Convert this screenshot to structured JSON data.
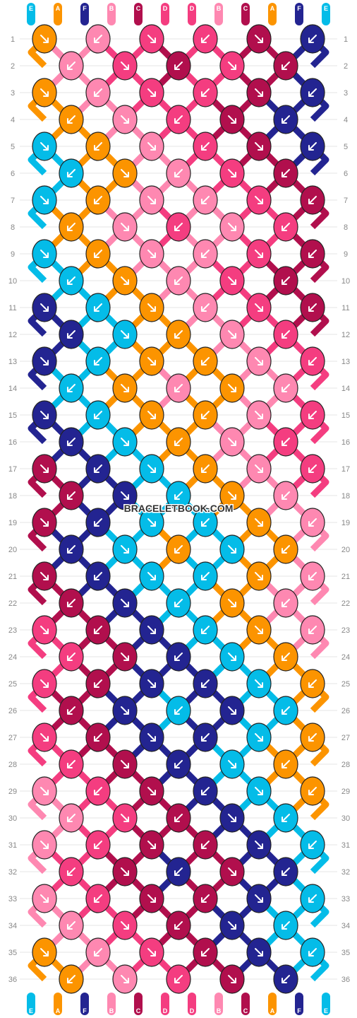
{
  "site": {
    "watermark": "BRACELETBOOK.COM"
  },
  "colors": {
    "A": "#fc9400",
    "B": "#fe88b1",
    "C": "#b10f4d",
    "D": "#f43d80",
    "E": "#04bce8",
    "F": "#232491"
  },
  "strands": {
    "top": [
      "E",
      "A",
      "F",
      "B",
      "C",
      "D",
      "D",
      "B",
      "C",
      "A",
      "F",
      "E"
    ],
    "bottom": [
      "E",
      "A",
      "F",
      "B",
      "C",
      "D",
      "D",
      "B",
      "C",
      "A",
      "F",
      "E"
    ]
  },
  "rows": [
    "1",
    "2",
    "3",
    "4",
    "5",
    "6",
    "7",
    "8",
    "9",
    "10",
    "11",
    "12",
    "13",
    "14",
    "15",
    "16",
    "17",
    "18",
    "19",
    "20",
    "21",
    "22",
    "23",
    "24",
    "25",
    "26",
    "27",
    "28",
    "29",
    "30",
    "31",
    "32",
    "33",
    "34",
    "35",
    "36"
  ],
  "knots": [
    [
      "A",
      "B",
      "D",
      "D",
      "C",
      "F"
    ],
    [
      "B",
      "D",
      "C",
      "D",
      "C"
    ],
    [
      "A",
      "B",
      "D",
      "D",
      "C",
      "F"
    ],
    [
      "A",
      "B",
      "D",
      "C",
      "F"
    ],
    [
      "E",
      "A",
      "B",
      "D",
      "C",
      "F"
    ],
    [
      "E",
      "A",
      "B",
      "D",
      "C"
    ],
    [
      "E",
      "A",
      "B",
      "B",
      "D",
      "C"
    ],
    [
      "A",
      "B",
      "D",
      "B",
      "D"
    ],
    [
      "E",
      "A",
      "B",
      "B",
      "D",
      "C"
    ],
    [
      "E",
      "A",
      "B",
      "D",
      "C"
    ],
    [
      "F",
      "E",
      "A",
      "B",
      "D",
      "C"
    ],
    [
      "F",
      "E",
      "A",
      "B",
      "D"
    ],
    [
      "F",
      "E",
      "A",
      "A",
      "B",
      "D"
    ],
    [
      "E",
      "A",
      "B",
      "A",
      "B"
    ],
    [
      "F",
      "E",
      "A",
      "A",
      "B",
      "D"
    ],
    [
      "F",
      "E",
      "A",
      "B",
      "D"
    ],
    [
      "C",
      "F",
      "E",
      "A",
      "B",
      "D"
    ],
    [
      "C",
      "F",
      "E",
      "A",
      "B"
    ],
    [
      "C",
      "F",
      "E",
      "E",
      "A",
      "B"
    ],
    [
      "F",
      "E",
      "A",
      "E",
      "A"
    ],
    [
      "C",
      "F",
      "E",
      "E",
      "A",
      "B"
    ],
    [
      "C",
      "F",
      "E",
      "A",
      "B"
    ],
    [
      "D",
      "C",
      "F",
      "E",
      "A",
      "B"
    ],
    [
      "D",
      "C",
      "F",
      "E",
      "A"
    ],
    [
      "D",
      "C",
      "F",
      "F",
      "E",
      "A"
    ],
    [
      "C",
      "F",
      "E",
      "F",
      "E"
    ],
    [
      "D",
      "C",
      "F",
      "F",
      "E",
      "A"
    ],
    [
      "D",
      "C",
      "F",
      "E",
      "A"
    ],
    [
      "B",
      "D",
      "C",
      "F",
      "E",
      "A"
    ],
    [
      "B",
      "D",
      "C",
      "F",
      "E"
    ],
    [
      "B",
      "D",
      "C",
      "C",
      "F",
      "E"
    ],
    [
      "D",
      "C",
      "F",
      "C",
      "F"
    ],
    [
      "B",
      "D",
      "C",
      "C",
      "F",
      "E"
    ],
    [
      "B",
      "D",
      "C",
      "F",
      "E"
    ],
    [
      "A",
      "B",
      "D",
      "C",
      "F",
      "E"
    ],
    [
      "A",
      "B",
      "D",
      "C",
      "F"
    ]
  ]
}
